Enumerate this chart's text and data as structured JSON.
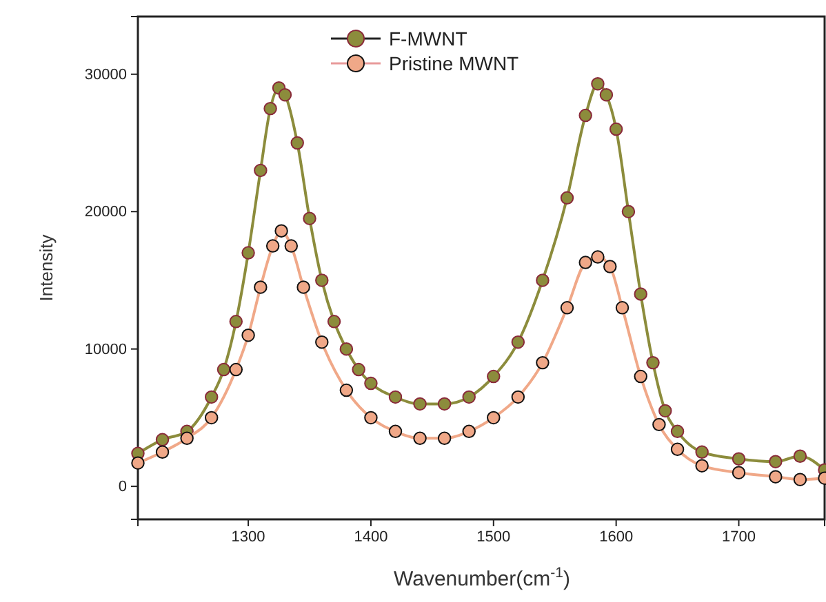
{
  "chart_data": {
    "type": "line",
    "xlabel": "Wavenumber(cm$^{-1}$)",
    "ylabel": "Intensity",
    "xlim": [
      1210,
      1770
    ],
    "xticks": [
      1300,
      1400,
      1500,
      1600,
      1700
    ],
    "ylim": [
      -2400,
      34200
    ],
    "yticks": [
      0,
      10000,
      20000,
      30000
    ],
    "marker": "circle",
    "legend": "top",
    "series": [
      {
        "name": "F-MWNT",
        "color": "#8c8c3c",
        "x": [
          1210,
          1230,
          1250,
          1270,
          1280,
          1290,
          1300,
          1310,
          1318,
          1325,
          1330,
          1340,
          1350,
          1360,
          1370,
          1380,
          1390,
          1400,
          1420,
          1440,
          1460,
          1480,
          1500,
          1520,
          1540,
          1560,
          1575,
          1585,
          1592,
          1600,
          1610,
          1620,
          1630,
          1640,
          1650,
          1670,
          1700,
          1730,
          1750,
          1770
        ],
        "values": [
          2400,
          3400,
          4000,
          6500,
          8500,
          12000,
          17000,
          23000,
          27500,
          29000,
          28500,
          25000,
          19500,
          15000,
          12000,
          10000,
          8500,
          7500,
          6500,
          6000,
          6000,
          6500,
          8000,
          10500,
          15000,
          21000,
          27000,
          29300,
          28500,
          26000,
          20000,
          14000,
          9000,
          5500,
          4000,
          2500,
          2000,
          1800,
          2200,
          1200
        ]
      },
      {
        "name": "Pristine MWNT",
        "color": "#f0a888",
        "x": [
          1210,
          1230,
          1250,
          1270,
          1290,
          1300,
          1310,
          1320,
          1327,
          1335,
          1345,
          1360,
          1380,
          1400,
          1420,
          1440,
          1460,
          1480,
          1500,
          1520,
          1540,
          1560,
          1575,
          1585,
          1595,
          1605,
          1620,
          1635,
          1650,
          1670,
          1700,
          1730,
          1750,
          1770
        ],
        "values": [
          1700,
          2500,
          3500,
          5000,
          8500,
          11000,
          14500,
          17500,
          18600,
          17500,
          14500,
          10500,
          7000,
          5000,
          4000,
          3500,
          3500,
          4000,
          5000,
          6500,
          9000,
          13000,
          16300,
          16700,
          16000,
          13000,
          8000,
          4500,
          2700,
          1500,
          1000,
          700,
          500,
          600
        ]
      }
    ]
  }
}
